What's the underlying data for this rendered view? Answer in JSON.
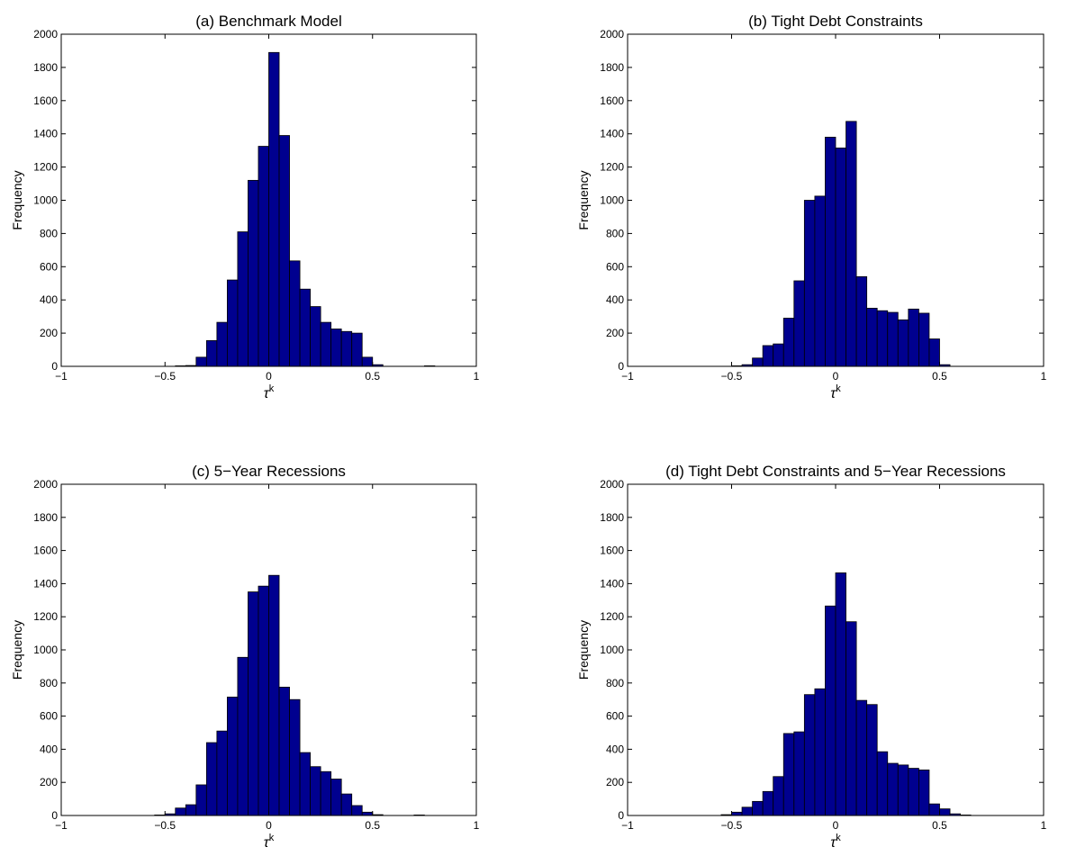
{
  "chart_data": [
    {
      "type": "bar",
      "title": "(a) Benchmark Model",
      "xlabel": "τ",
      "xlabel_sup": "k",
      "ylabel": "Frequency",
      "xlim": [
        -1,
        1
      ],
      "ylim": [
        0,
        2000
      ],
      "xticks": [
        "−1",
        "−0.5",
        "0",
        "0.5",
        "1"
      ],
      "yticks": [
        "0",
        "200",
        "400",
        "600",
        "800",
        "1000",
        "1200",
        "1400",
        "1600",
        "1800",
        "2000"
      ],
      "bar_color": "#00008f",
      "bin_width": 0.05,
      "bins": [
        {
          "x": -0.425,
          "y": 3
        },
        {
          "x": -0.375,
          "y": 5
        },
        {
          "x": -0.325,
          "y": 55
        },
        {
          "x": -0.275,
          "y": 155
        },
        {
          "x": -0.225,
          "y": 265
        },
        {
          "x": -0.175,
          "y": 520
        },
        {
          "x": -0.125,
          "y": 810
        },
        {
          "x": -0.075,
          "y": 1120
        },
        {
          "x": -0.025,
          "y": 1325
        },
        {
          "x": 0.025,
          "y": 1890
        },
        {
          "x": 0.075,
          "y": 1390
        },
        {
          "x": 0.125,
          "y": 635
        },
        {
          "x": 0.175,
          "y": 465
        },
        {
          "x": 0.225,
          "y": 360
        },
        {
          "x": 0.275,
          "y": 265
        },
        {
          "x": 0.325,
          "y": 225
        },
        {
          "x": 0.375,
          "y": 210
        },
        {
          "x": 0.425,
          "y": 200
        },
        {
          "x": 0.475,
          "y": 55
        },
        {
          "x": 0.525,
          "y": 10
        },
        {
          "x": 0.775,
          "y": 3
        }
      ]
    },
    {
      "type": "bar",
      "title": "(b) Tight Debt Constraints",
      "xlabel": "τ",
      "xlabel_sup": "k",
      "ylabel": "Frequency",
      "xlim": [
        -1,
        1
      ],
      "ylim": [
        0,
        2000
      ],
      "xticks": [
        "−1",
        "−0.5",
        "0",
        "0.5",
        "1"
      ],
      "yticks": [
        "0",
        "200",
        "400",
        "600",
        "800",
        "1000",
        "1200",
        "1400",
        "1600",
        "1800",
        "2000"
      ],
      "bar_color": "#00008f",
      "bin_width": 0.05,
      "bins": [
        {
          "x": -0.475,
          "y": 3
        },
        {
          "x": -0.425,
          "y": 10
        },
        {
          "x": -0.375,
          "y": 50
        },
        {
          "x": -0.325,
          "y": 125
        },
        {
          "x": -0.275,
          "y": 135
        },
        {
          "x": -0.225,
          "y": 290
        },
        {
          "x": -0.175,
          "y": 515
        },
        {
          "x": -0.125,
          "y": 1000
        },
        {
          "x": -0.075,
          "y": 1025
        },
        {
          "x": -0.025,
          "y": 1380
        },
        {
          "x": 0.025,
          "y": 1315
        },
        {
          "x": 0.075,
          "y": 1475
        },
        {
          "x": 0.125,
          "y": 540
        },
        {
          "x": 0.175,
          "y": 350
        },
        {
          "x": 0.225,
          "y": 335
        },
        {
          "x": 0.275,
          "y": 325
        },
        {
          "x": 0.325,
          "y": 280
        },
        {
          "x": 0.375,
          "y": 345
        },
        {
          "x": 0.425,
          "y": 320
        },
        {
          "x": 0.475,
          "y": 165
        },
        {
          "x": 0.525,
          "y": 10
        }
      ]
    },
    {
      "type": "bar",
      "title": "(c) 5−Year Recessions",
      "xlabel": "τ",
      "xlabel_sup": "k",
      "ylabel": "Frequency",
      "xlim": [
        -1,
        1
      ],
      "ylim": [
        0,
        2000
      ],
      "xticks": [
        "−1",
        "−0.5",
        "0",
        "0.5",
        "1"
      ],
      "yticks": [
        "0",
        "200",
        "400",
        "600",
        "800",
        "1000",
        "1200",
        "1400",
        "1600",
        "1800",
        "2000"
      ],
      "bar_color": "#00008f",
      "bin_width": 0.05,
      "bins": [
        {
          "x": -0.525,
          "y": 3
        },
        {
          "x": -0.475,
          "y": 10
        },
        {
          "x": -0.425,
          "y": 45
        },
        {
          "x": -0.375,
          "y": 65
        },
        {
          "x": -0.325,
          "y": 185
        },
        {
          "x": -0.275,
          "y": 440
        },
        {
          "x": -0.225,
          "y": 510
        },
        {
          "x": -0.175,
          "y": 715
        },
        {
          "x": -0.125,
          "y": 955
        },
        {
          "x": -0.075,
          "y": 1350
        },
        {
          "x": -0.025,
          "y": 1385
        },
        {
          "x": 0.025,
          "y": 1450
        },
        {
          "x": 0.075,
          "y": 775
        },
        {
          "x": 0.125,
          "y": 700
        },
        {
          "x": 0.175,
          "y": 380
        },
        {
          "x": 0.225,
          "y": 295
        },
        {
          "x": 0.275,
          "y": 265
        },
        {
          "x": 0.325,
          "y": 220
        },
        {
          "x": 0.375,
          "y": 130
        },
        {
          "x": 0.425,
          "y": 60
        },
        {
          "x": 0.475,
          "y": 20
        },
        {
          "x": 0.525,
          "y": 5
        },
        {
          "x": 0.725,
          "y": 3
        }
      ]
    },
    {
      "type": "bar",
      "title": "(d) Tight Debt Constraints and 5−Year Recessions",
      "xlabel": "τ",
      "xlabel_sup": "k",
      "ylabel": "Frequency",
      "xlim": [
        -1,
        1
      ],
      "ylim": [
        0,
        2000
      ],
      "xticks": [
        "−1",
        "−0.5",
        "0",
        "0.5",
        "1"
      ],
      "yticks": [
        "0",
        "200",
        "400",
        "600",
        "800",
        "1000",
        "1200",
        "1400",
        "1600",
        "1800",
        "2000"
      ],
      "bar_color": "#00008f",
      "bin_width": 0.05,
      "bins": [
        {
          "x": -0.525,
          "y": 5
        },
        {
          "x": -0.475,
          "y": 20
        },
        {
          "x": -0.425,
          "y": 50
        },
        {
          "x": -0.375,
          "y": 85
        },
        {
          "x": -0.325,
          "y": 145
        },
        {
          "x": -0.275,
          "y": 235
        },
        {
          "x": -0.225,
          "y": 495
        },
        {
          "x": -0.175,
          "y": 505
        },
        {
          "x": -0.125,
          "y": 730
        },
        {
          "x": -0.075,
          "y": 765
        },
        {
          "x": -0.025,
          "y": 1265
        },
        {
          "x": 0.025,
          "y": 1465
        },
        {
          "x": 0.075,
          "y": 1170
        },
        {
          "x": 0.125,
          "y": 695
        },
        {
          "x": 0.175,
          "y": 670
        },
        {
          "x": 0.225,
          "y": 385
        },
        {
          "x": 0.275,
          "y": 315
        },
        {
          "x": 0.325,
          "y": 305
        },
        {
          "x": 0.375,
          "y": 285
        },
        {
          "x": 0.425,
          "y": 275
        },
        {
          "x": 0.475,
          "y": 70
        },
        {
          "x": 0.525,
          "y": 40
        },
        {
          "x": 0.575,
          "y": 10
        },
        {
          "x": 0.625,
          "y": 3
        }
      ]
    }
  ]
}
